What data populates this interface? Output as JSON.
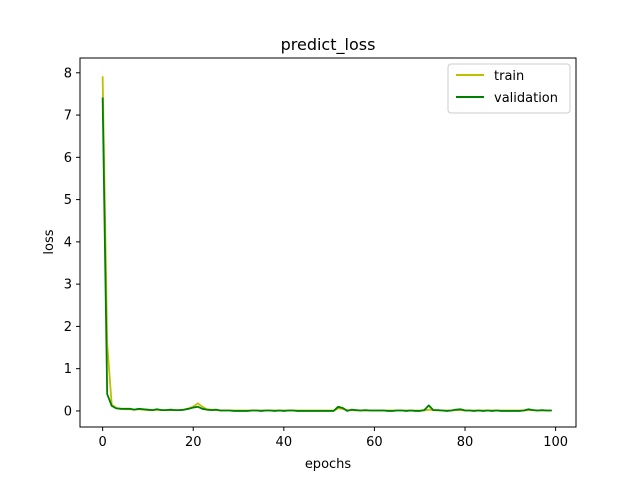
{
  "chart_data": {
    "type": "line",
    "title": "predict_loss",
    "xlabel": "epochs",
    "ylabel": "loss",
    "xlim": [
      -5,
      104.5
    ],
    "ylim": [
      -0.38,
      8.35
    ],
    "x_ticks": [
      0,
      20,
      40,
      60,
      80,
      100
    ],
    "y_ticks": [
      0,
      1,
      2,
      3,
      4,
      5,
      6,
      7,
      8
    ],
    "grid": false,
    "legend_position": "top-right",
    "series": [
      {
        "name": "train",
        "color": "#bfbf00",
        "values": [
          7.9,
          1.6,
          0.15,
          0.07,
          0.05,
          0.04,
          0.04,
          0.03,
          0.04,
          0.03,
          0.02,
          0.02,
          0.03,
          0.02,
          0.02,
          0.02,
          0.02,
          0.02,
          0.03,
          0.06,
          0.1,
          0.18,
          0.1,
          0.04,
          0.03,
          0.02,
          0.01,
          0.01,
          0.01,
          0.01,
          0.01,
          0.01,
          0.01,
          0.01,
          0.01,
          0.01,
          0.01,
          0.01,
          0.01,
          0.01,
          0.01,
          0.01,
          0.01,
          0.01,
          0.01,
          0.01,
          0.01,
          0.01,
          0.01,
          0.01,
          0.01,
          0.01,
          0.06,
          0.05,
          0.02,
          0.02,
          0.01,
          0.01,
          0.01,
          0.01,
          0.01,
          0.01,
          0.01,
          0.01,
          0.01,
          0.01,
          0.01,
          0.01,
          0.01,
          0.01,
          0.01,
          0.01,
          0.03,
          0.02,
          0.01,
          0.01,
          0.01,
          0.01,
          0.02,
          0.02,
          0.01,
          0.01,
          0.01,
          0.01,
          0.01,
          0.01,
          0.01,
          0.01,
          0.01,
          0.01,
          0.01,
          0.01,
          0.01,
          0.01,
          0.02,
          0.02,
          0.01,
          0.01,
          0.01,
          0.01
        ]
      },
      {
        "name": "validation",
        "color": "#008000",
        "values": [
          7.4,
          0.4,
          0.12,
          0.06,
          0.05,
          0.05,
          0.05,
          0.03,
          0.05,
          0.04,
          0.03,
          0.02,
          0.04,
          0.02,
          0.02,
          0.03,
          0.02,
          0.02,
          0.03,
          0.05,
          0.08,
          0.1,
          0.05,
          0.03,
          0.02,
          0.03,
          0.01,
          0.01,
          0.01,
          0.0,
          0.0,
          0.0,
          0.0,
          0.01,
          0.01,
          0.0,
          0.01,
          0.01,
          0.0,
          0.01,
          0.0,
          0.01,
          0.01,
          0.0,
          0.0,
          0.0,
          0.0,
          0.0,
          0.0,
          0.0,
          0.0,
          0.0,
          0.1,
          0.07,
          0.0,
          0.03,
          0.02,
          0.01,
          0.02,
          0.01,
          0.01,
          0.01,
          0.01,
          0.0,
          0.0,
          0.01,
          0.01,
          0.0,
          0.01,
          0.0,
          0.0,
          0.02,
          0.13,
          0.02,
          0.02,
          0.01,
          0.0,
          0.01,
          0.03,
          0.04,
          0.01,
          0.01,
          0.0,
          0.01,
          0.0,
          0.01,
          0.0,
          0.01,
          0.0,
          0.0,
          0.0,
          0.0,
          0.0,
          0.01,
          0.04,
          0.02,
          0.01,
          0.02,
          0.01,
          0.01
        ]
      }
    ]
  }
}
